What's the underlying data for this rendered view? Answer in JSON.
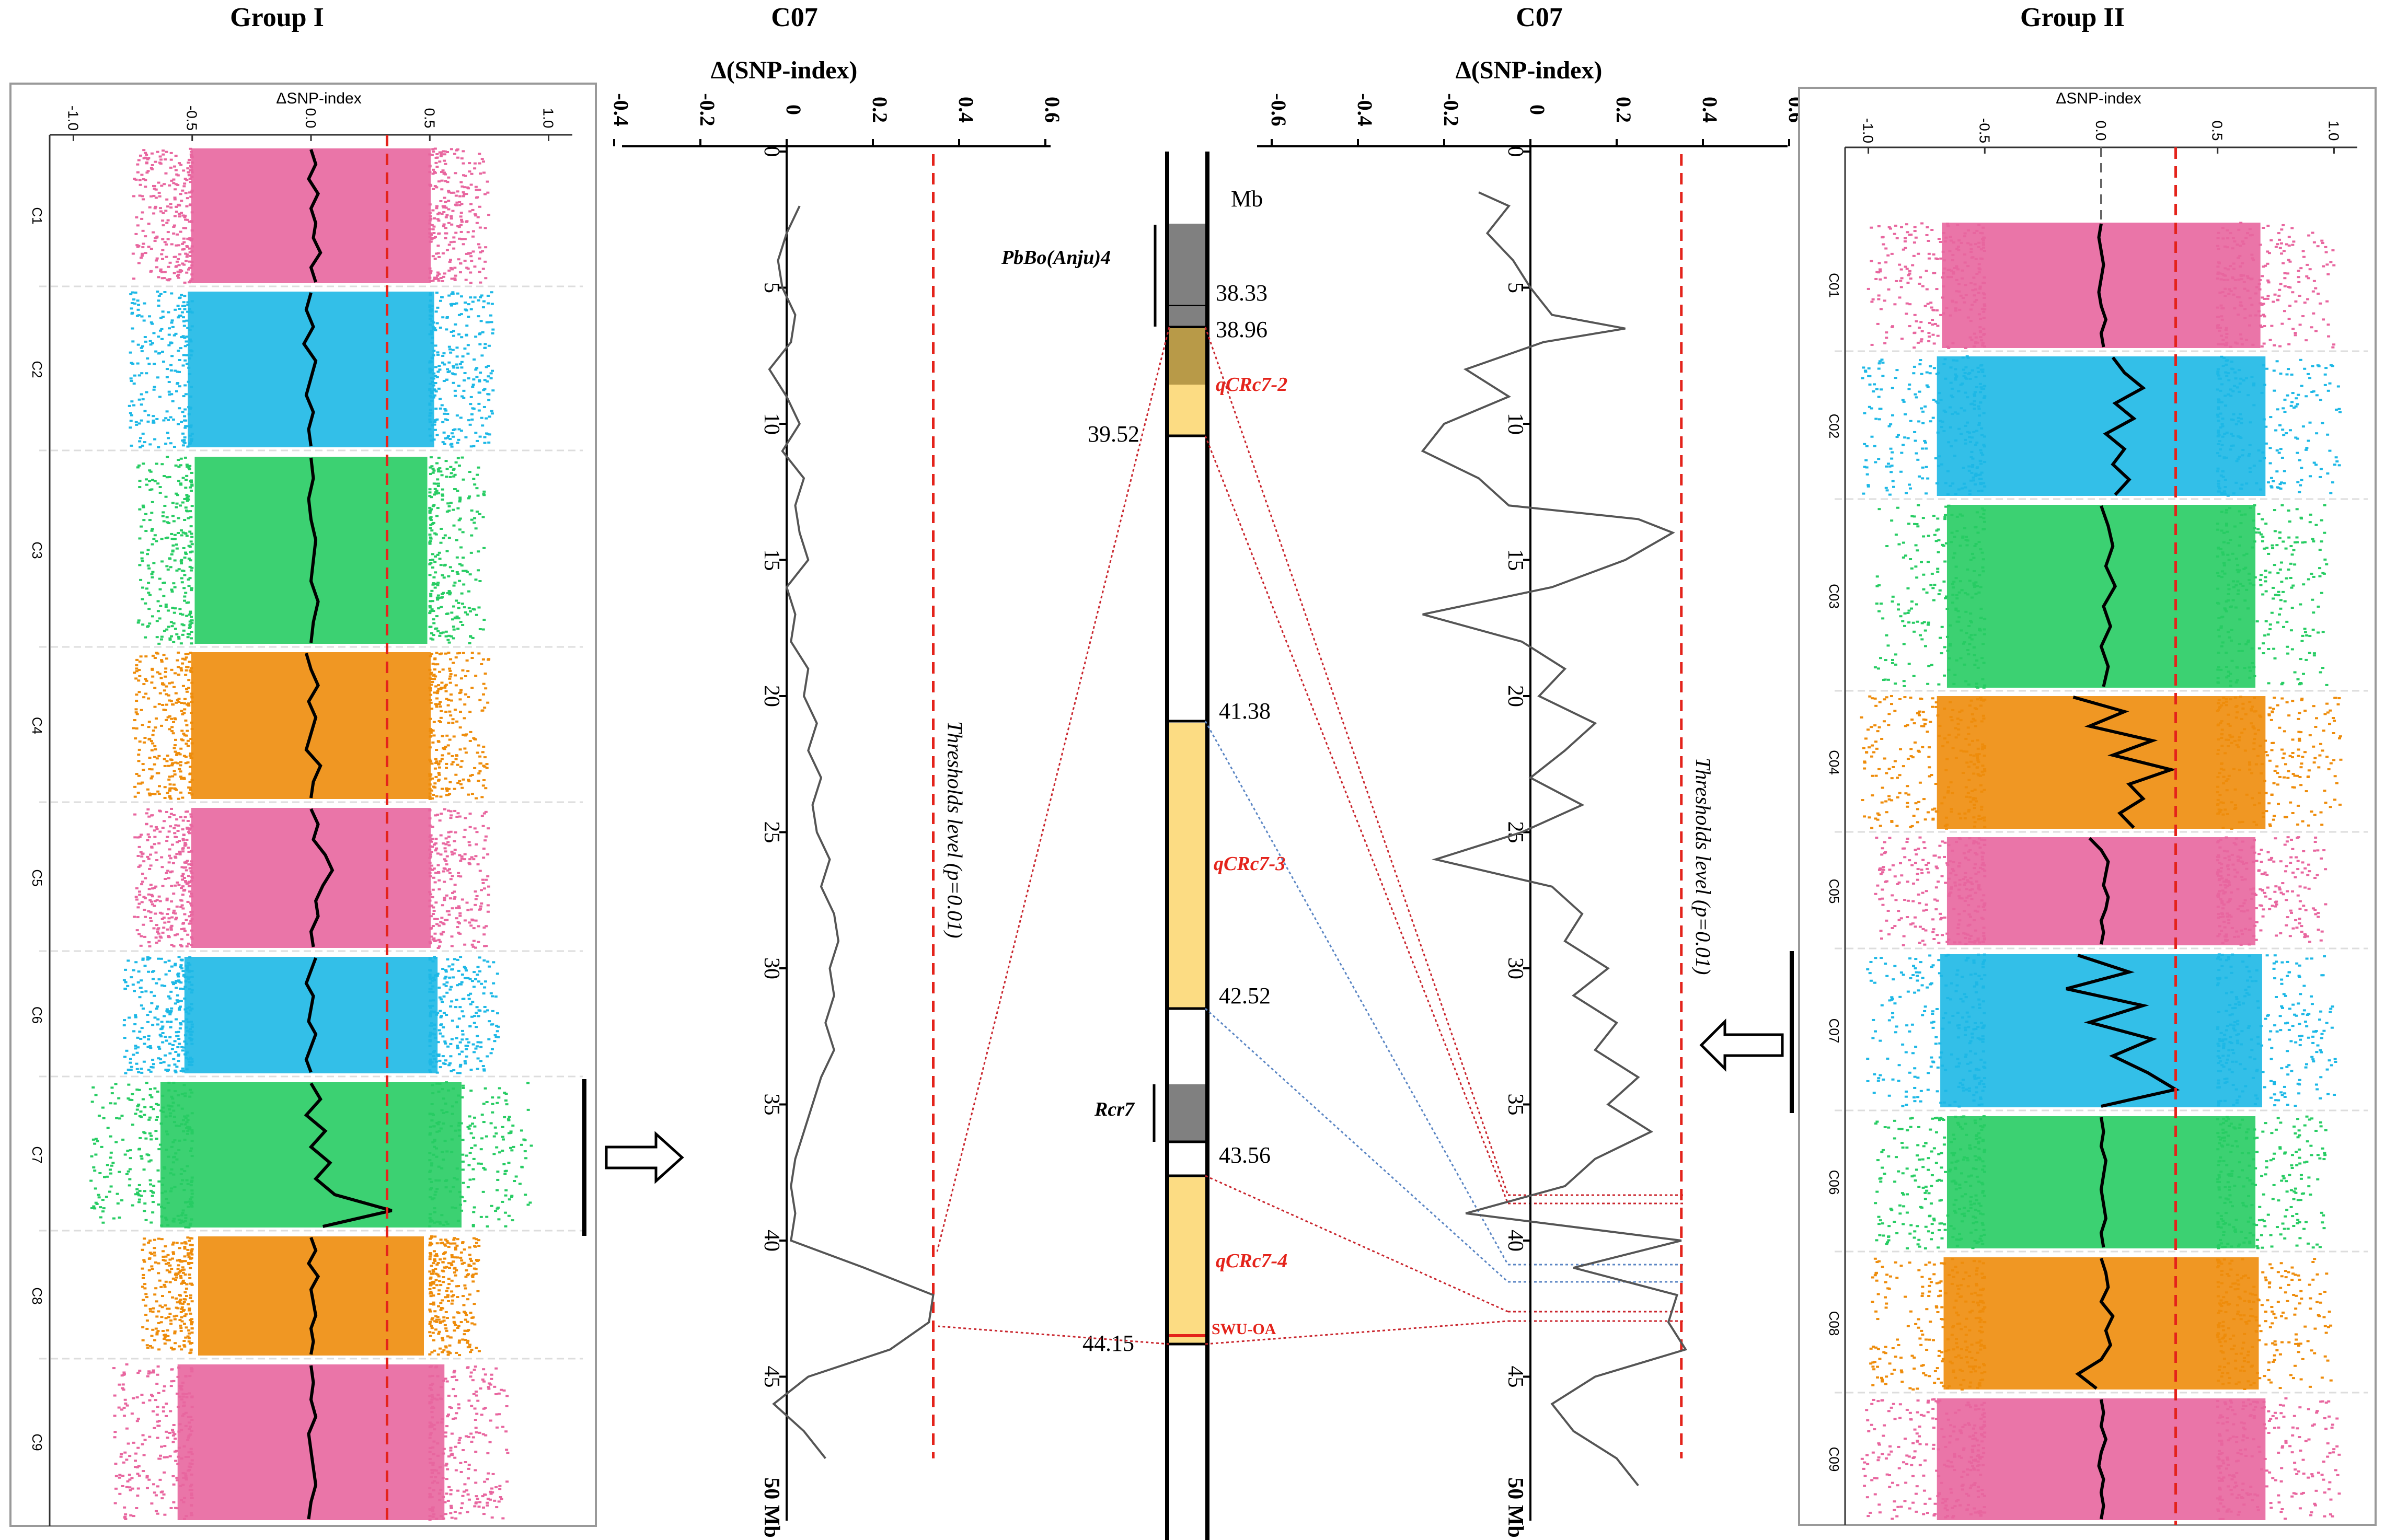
{
  "titles": {
    "group1": "Group I",
    "c07_left": "C07",
    "c07_right": "C07",
    "group2": "Group II"
  },
  "colors": {
    "pink": "#E8669F",
    "blue": "#1DB8E6",
    "green": "#27CC63",
    "orange": "#EE8C0B",
    "threshold": "#E4231B",
    "qtl_fill": "#FCDC83",
    "qtl_dark": "#B89A48",
    "marker_gray": "#808080",
    "trace": "#555555",
    "link_red": "#C9252D",
    "link_blue": "#5B86C4"
  },
  "chart_data": [
    {
      "type": "scatter",
      "name": "group1-manhattan",
      "title": "Group I",
      "xlabel": "ΔSNP-index",
      "xlim": [
        -1.1,
        1.1
      ],
      "x_ticks": [
        -1.0,
        -0.5,
        0.0,
        0.5,
        1.0
      ],
      "x_tick_labels": [
        "-1.0",
        "-0.5",
        "0.0",
        "0.5",
        "1.0"
      ],
      "threshold": 0.32,
      "chromosomes": [
        {
          "label": "C1",
          "color": "pink",
          "spread": 0.7,
          "trace": [
            0.0,
            0.02,
            -0.01,
            0.03,
            0.0,
            0.02,
            0.01,
            0.04,
            0.0,
            0.02
          ]
        },
        {
          "label": "C2",
          "color": "blue",
          "spread": 0.72,
          "trace": [
            0.0,
            -0.02,
            0.01,
            -0.03,
            0.02,
            0.0,
            -0.02,
            0.01,
            -0.01,
            0.0
          ]
        },
        {
          "label": "C3",
          "color": "green",
          "spread": 0.68,
          "trace": [
            0.0,
            0.01,
            -0.01,
            0.0,
            0.02,
            0.01,
            0.0,
            0.03,
            0.01,
            0.0
          ]
        },
        {
          "label": "C4",
          "color": "orange",
          "spread": 0.7,
          "trace": [
            -0.02,
            0.0,
            0.03,
            -0.01,
            0.02,
            0.0,
            -0.02,
            0.04,
            0.01,
            0.0
          ]
        },
        {
          "label": "C5",
          "color": "pink",
          "spread": 0.7,
          "trace": [
            0.0,
            0.03,
            0.01,
            0.06,
            0.09,
            0.05,
            0.02,
            0.03,
            0.0,
            0.01
          ]
        },
        {
          "label": "C6",
          "color": "blue",
          "spread": 0.74,
          "trace": [
            0.02,
            0.0,
            -0.02,
            0.01,
            0.0,
            -0.01,
            0.02,
            0.0,
            -0.02,
            0.0
          ]
        },
        {
          "label": "C7",
          "color": "green",
          "spread": 0.88,
          "trace": [
            0.0,
            0.04,
            -0.02,
            0.06,
            0.0,
            0.08,
            0.02,
            0.1,
            0.34,
            0.05
          ]
        },
        {
          "label": "C8",
          "color": "orange",
          "spread": 0.66,
          "trace": [
            0.0,
            0.02,
            -0.01,
            0.03,
            0.0,
            0.01,
            0.02,
            0.0,
            0.01,
            0.0
          ]
        },
        {
          "label": "C9",
          "color": "pink",
          "spread": 0.78,
          "trace": [
            0.0,
            0.01,
            0.0,
            0.02,
            -0.01,
            0.0,
            0.01,
            0.02,
            0.0,
            -0.01
          ]
        }
      ]
    },
    {
      "type": "line",
      "name": "c07-group1-delta-snp",
      "title": "C07",
      "xlabel": "Δ(SNP-index)",
      "xlim": [
        -0.4,
        0.6
      ],
      "x_ticks": [
        -0.4,
        -0.2,
        0.0,
        0.2,
        0.4,
        0.6
      ],
      "x_tick_labels": [
        "-0.4",
        "-0.2",
        "0",
        "0.2",
        "0.4",
        "0.6"
      ],
      "ylim": [
        0,
        50
      ],
      "y_ticks": [
        0,
        5,
        10,
        15,
        20,
        25,
        30,
        35,
        40,
        45
      ],
      "y_tick_labels": [
        "0",
        "5",
        "10",
        "15",
        "20",
        "25",
        "30",
        "35",
        "40",
        "45"
      ],
      "y_end_label": "50 Mb",
      "threshold": 0.34,
      "threshold_label": "Thresholds level (p=0.01)",
      "points": [
        [
          2,
          0.03
        ],
        [
          3,
          0.0
        ],
        [
          4,
          -0.02
        ],
        [
          5,
          -0.01
        ],
        [
          6,
          0.02
        ],
        [
          7,
          0.01
        ],
        [
          8,
          -0.04
        ],
        [
          9,
          0.0
        ],
        [
          10,
          0.03
        ],
        [
          11,
          -0.01
        ],
        [
          12,
          0.04
        ],
        [
          13,
          0.02
        ],
        [
          14,
          0.03
        ],
        [
          15,
          0.05
        ],
        [
          16,
          0.0
        ],
        [
          17,
          0.02
        ],
        [
          18,
          0.01
        ],
        [
          19,
          0.05
        ],
        [
          20,
          0.04
        ],
        [
          21,
          0.07
        ],
        [
          22,
          0.05
        ],
        [
          23,
          0.08
        ],
        [
          24,
          0.06
        ],
        [
          25,
          0.07
        ],
        [
          26,
          0.1
        ],
        [
          27,
          0.08
        ],
        [
          28,
          0.11
        ],
        [
          29,
          0.12
        ],
        [
          30,
          0.1
        ],
        [
          31,
          0.11
        ],
        [
          32,
          0.09
        ],
        [
          33,
          0.11
        ],
        [
          34,
          0.08
        ],
        [
          35,
          0.06
        ],
        [
          36,
          0.04
        ],
        [
          37,
          0.02
        ],
        [
          38,
          0.01
        ],
        [
          39,
          0.02
        ],
        [
          40,
          0.01
        ],
        [
          41,
          0.18
        ],
        [
          42,
          0.34
        ],
        [
          43,
          0.33
        ],
        [
          44,
          0.24
        ],
        [
          45,
          0.05
        ],
        [
          46,
          -0.03
        ],
        [
          47,
          0.04
        ],
        [
          48,
          0.09
        ]
      ]
    },
    {
      "type": "line",
      "name": "c07-group2-delta-snp",
      "title": "C07",
      "xlabel": "Δ(SNP-index)",
      "xlim": [
        -0.6,
        0.6
      ],
      "x_ticks": [
        -0.6,
        -0.4,
        -0.2,
        0.0,
        0.2,
        0.4,
        0.6
      ],
      "x_tick_labels": [
        "-0.6",
        "-0.4",
        "-0.2",
        "0",
        "0.2",
        "0.4",
        "0.6"
      ],
      "ylim": [
        0,
        50
      ],
      "y_ticks": [
        0,
        5,
        10,
        15,
        20,
        25,
        30,
        35,
        40,
        45
      ],
      "y_tick_labels": [
        "0",
        "5",
        "10",
        "15",
        "20",
        "25",
        "30",
        "35",
        "40",
        "45"
      ],
      "y_end_label": "50 Mb",
      "threshold": 0.35,
      "threshold_label": "Thresholds level (p=0.01)",
      "points": [
        [
          1.5,
          -0.12
        ],
        [
          2,
          -0.05
        ],
        [
          3,
          -0.1
        ],
        [
          4,
          -0.04
        ],
        [
          5,
          0.0
        ],
        [
          6,
          0.05
        ],
        [
          6.5,
          0.22
        ],
        [
          7,
          0.03
        ],
        [
          8,
          -0.15
        ],
        [
          9,
          -0.05
        ],
        [
          10,
          -0.2
        ],
        [
          11,
          -0.25
        ],
        [
          12,
          -0.12
        ],
        [
          13,
          -0.05
        ],
        [
          13.5,
          0.25
        ],
        [
          14,
          0.33
        ],
        [
          15,
          0.22
        ],
        [
          16,
          0.05
        ],
        [
          17,
          -0.25
        ],
        [
          18,
          -0.02
        ],
        [
          19,
          0.08
        ],
        [
          20,
          0.02
        ],
        [
          21,
          0.15
        ],
        [
          22,
          0.08
        ],
        [
          23,
          0.0
        ],
        [
          24,
          0.12
        ],
        [
          25,
          -0.02
        ],
        [
          26,
          -0.22
        ],
        [
          27,
          0.05
        ],
        [
          28,
          0.12
        ],
        [
          29,
          0.08
        ],
        [
          30,
          0.18
        ],
        [
          31,
          0.1
        ],
        [
          32,
          0.2
        ],
        [
          33,
          0.15
        ],
        [
          34,
          0.25
        ],
        [
          35,
          0.18
        ],
        [
          36,
          0.28
        ],
        [
          37,
          0.15
        ],
        [
          38,
          0.08
        ],
        [
          39,
          -0.15
        ],
        [
          40,
          0.35
        ],
        [
          41,
          0.1
        ],
        [
          42,
          0.34
        ],
        [
          43,
          0.32
        ],
        [
          44,
          0.36
        ],
        [
          45,
          0.15
        ],
        [
          46,
          0.05
        ],
        [
          47,
          0.1
        ],
        [
          48,
          0.2
        ],
        [
          49,
          0.25
        ]
      ]
    },
    {
      "type": "scatter",
      "name": "group2-manhattan",
      "title": "Group II",
      "xlabel": "ΔSNP-index",
      "xlim": [
        -1.1,
        1.1
      ],
      "x_ticks": [
        -1.0,
        -0.5,
        0.0,
        0.5,
        1.0
      ],
      "x_tick_labels": [
        "-1.0",
        "-0.5",
        "0.0",
        "0.5",
        "1.0"
      ],
      "threshold": 0.32,
      "chromosomes": [
        {
          "label": "C01",
          "color": "pink",
          "spread": 0.95,
          "trace": [
            0.0,
            -0.01,
            0.0,
            0.01,
            0.0,
            -0.01,
            0.0,
            0.02,
            0.0,
            0.01
          ]
        },
        {
          "label": "C02",
          "color": "blue",
          "spread": 0.98,
          "trace": [
            0.05,
            0.1,
            0.18,
            0.06,
            0.14,
            0.02,
            0.1,
            0.05,
            0.12,
            0.06
          ]
        },
        {
          "label": "C03",
          "color": "green",
          "spread": 0.92,
          "trace": [
            0.0,
            0.03,
            0.05,
            0.02,
            0.06,
            0.01,
            0.04,
            0.0,
            0.03,
            0.01
          ]
        },
        {
          "label": "C04",
          "color": "orange",
          "spread": 0.98,
          "trace": [
            -0.12,
            0.1,
            -0.05,
            0.22,
            0.05,
            0.3,
            0.12,
            0.18,
            0.08,
            0.14
          ]
        },
        {
          "label": "C05",
          "color": "pink",
          "spread": 0.92,
          "trace": [
            -0.05,
            0.0,
            0.03,
            0.02,
            0.01,
            0.03,
            0.02,
            0.0,
            0.01,
            0.0
          ]
        },
        {
          "label": "C07",
          "color": "blue",
          "spread": 0.96,
          "trace": [
            -0.1,
            0.12,
            -0.15,
            0.18,
            -0.05,
            0.22,
            0.05,
            0.2,
            0.32,
            0.0
          ]
        },
        {
          "label": "C06",
          "color": "green",
          "spread": 0.92,
          "trace": [
            0.0,
            0.01,
            0.0,
            0.02,
            0.01,
            0.0,
            0.01,
            0.02,
            0.0,
            0.01
          ]
        },
        {
          "label": "C08",
          "color": "orange",
          "spread": 0.94,
          "trace": [
            0.0,
            0.02,
            0.03,
            0.0,
            0.05,
            0.02,
            0.04,
            0.0,
            -0.1,
            -0.02
          ]
        },
        {
          "label": "C09",
          "color": "pink",
          "spread": 0.98,
          "trace": [
            0.0,
            0.01,
            0.0,
            0.02,
            0.0,
            -0.01,
            0.01,
            0.0,
            0.01,
            0.0
          ]
        }
      ]
    }
  ],
  "chromosome_map": {
    "unit_label": "Mb",
    "positions": [
      "38.33",
      "38.96",
      "39.52",
      "41.38",
      "42.52",
      "43.56",
      "44.15"
    ],
    "qtl_labels": [
      "qCRc7-2",
      "qCRc7-3",
      "qCRc7-4"
    ],
    "markers": [
      "PbBo(Anju)4",
      "Rcr7",
      "SWU-OA"
    ]
  }
}
